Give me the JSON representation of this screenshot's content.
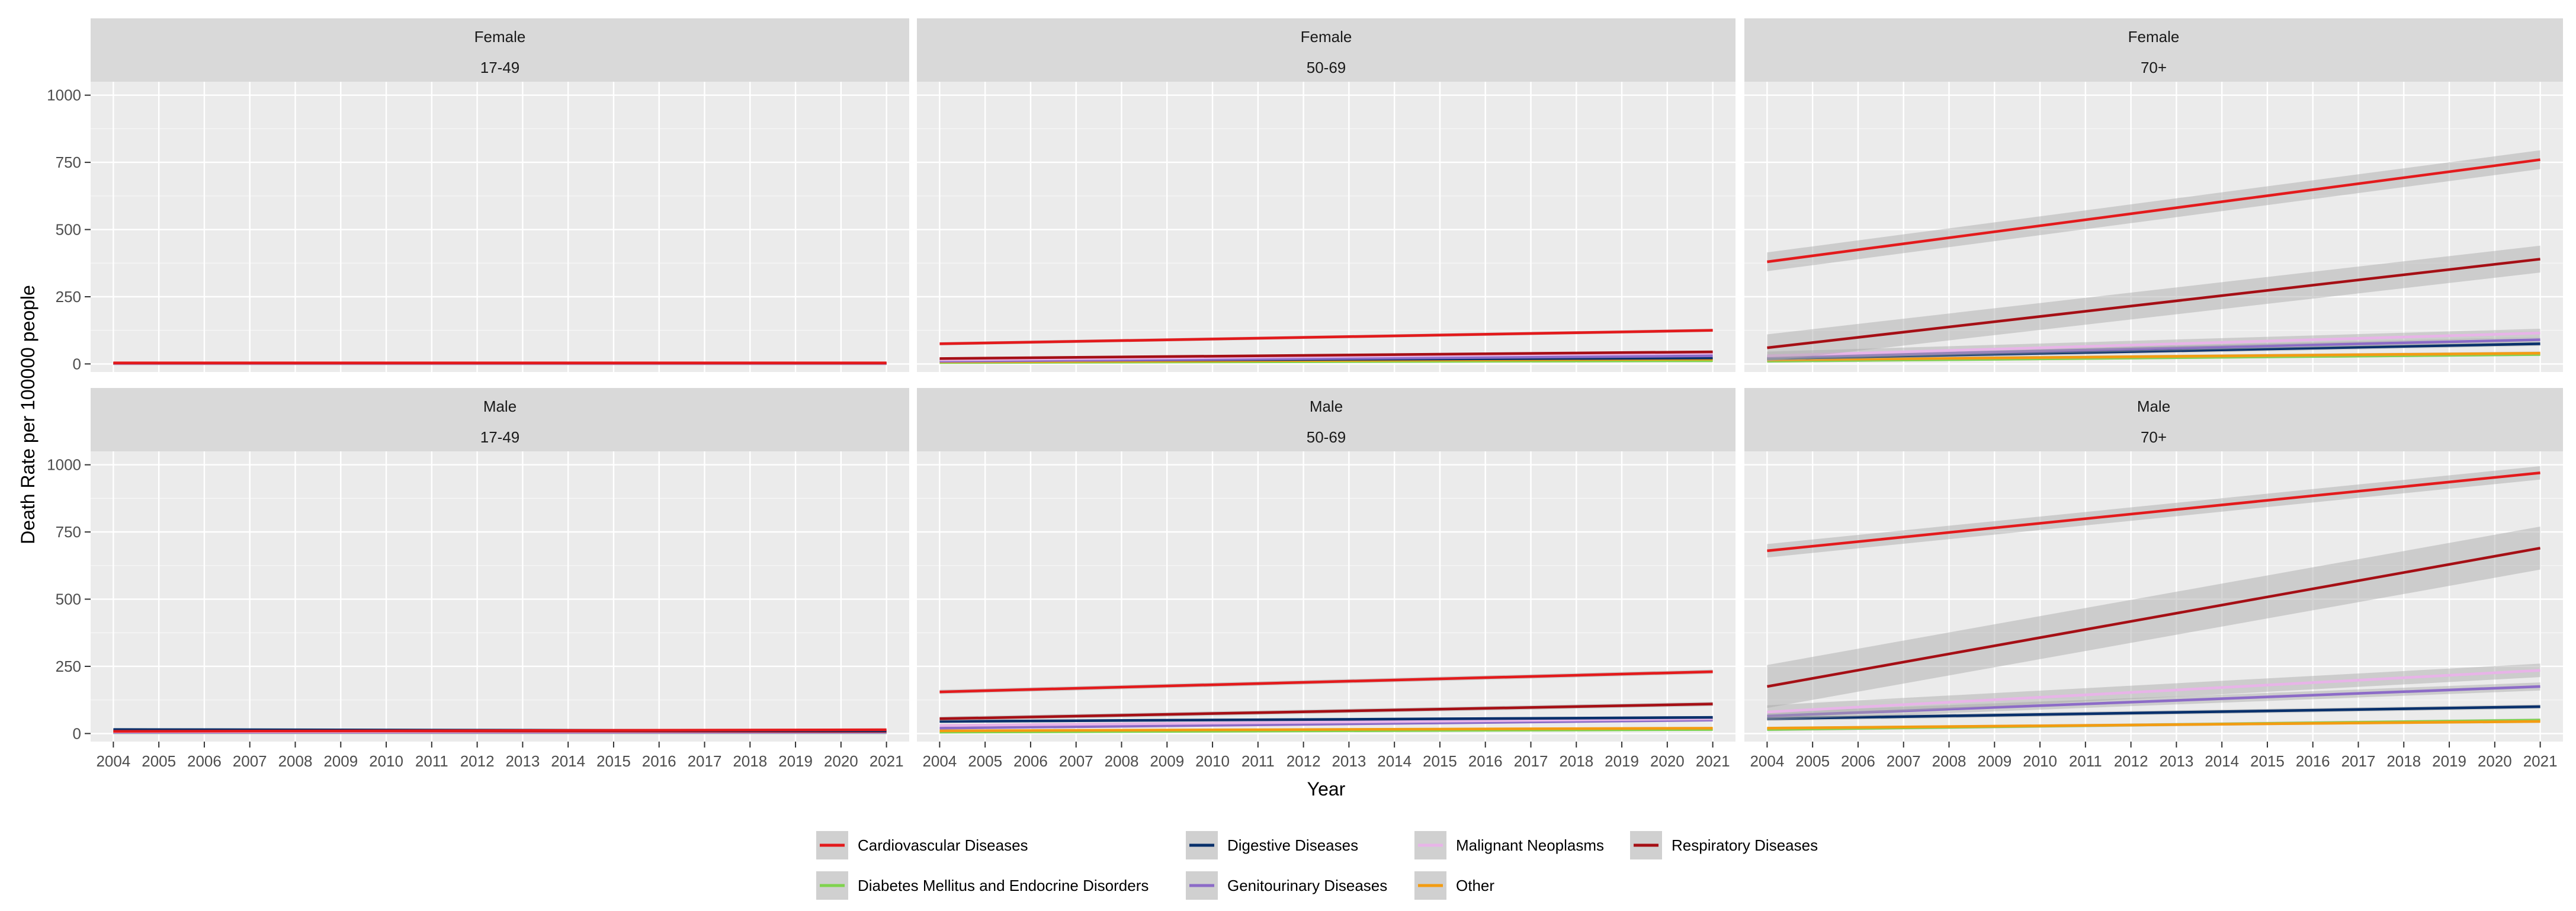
{
  "chart_data": {
    "type": "line",
    "facet_by": [
      "sex",
      "age_group"
    ],
    "xlabel": "Year",
    "ylabel": "Death Rate per 100000 people",
    "x_ticks": [
      "2004",
      "2005",
      "2006",
      "2007",
      "2008",
      "2009",
      "2010",
      "2011",
      "2012",
      "2013",
      "2014",
      "2015",
      "2016",
      "2017",
      "2018",
      "2019",
      "2020",
      "2021"
    ],
    "xlim": [
      2003.5,
      2021.5
    ],
    "y_ticks": [
      0,
      250,
      500,
      750,
      1000
    ],
    "ylim": [
      -30,
      1050
    ],
    "grid": true,
    "legend_position": "bottom",
    "colors": {
      "panel_bg": "#EBEBEB",
      "strip_bg": "#D9D9D9",
      "grid": "#FFFFFF",
      "ribbon": "#A6A6A6"
    },
    "series_defs": [
      {
        "key": "cardio",
        "name": "Cardiovascular Diseases",
        "color": "#E31A1C"
      },
      {
        "key": "diab",
        "name": "Diabetes Mellitus and Endocrine Disorders",
        "color": "#7FD34E"
      },
      {
        "key": "dig",
        "name": "Digestive Diseases",
        "color": "#08306B"
      },
      {
        "key": "geni",
        "name": "Genitourinary Diseases",
        "color": "#8C6BC7"
      },
      {
        "key": "malig",
        "name": "Malignant Neoplasms",
        "color": "#E8B4E8"
      },
      {
        "key": "other",
        "name": "Other",
        "color": "#F39C12"
      },
      {
        "key": "resp",
        "name": "Respiratory Diseases",
        "color": "#A50F15"
      }
    ],
    "panels": [
      {
        "sex": "Female",
        "age": "17-49",
        "series": [
          {
            "key": "other",
            "start": 2,
            "end": 2,
            "band": 0
          },
          {
            "key": "diab",
            "start": 1,
            "end": 1,
            "band": 0
          },
          {
            "key": "geni",
            "start": 1,
            "end": 1,
            "band": 0
          },
          {
            "key": "dig",
            "start": 3,
            "end": 3,
            "band": 0
          },
          {
            "key": "malig",
            "start": 2,
            "end": 2,
            "band": 0
          },
          {
            "key": "resp",
            "start": 3,
            "end": 3,
            "band": 0
          },
          {
            "key": "cardio",
            "start": 4,
            "end": 4,
            "band": 0
          }
        ]
      },
      {
        "sex": "Female",
        "age": "50-69",
        "series": [
          {
            "key": "diab",
            "start": 5,
            "end": 12,
            "band": 2
          },
          {
            "key": "other",
            "start": 8,
            "end": 18,
            "band": 2
          },
          {
            "key": "dig",
            "start": 12,
            "end": 22,
            "band": 3
          },
          {
            "key": "geni",
            "start": 10,
            "end": 30,
            "band": 3
          },
          {
            "key": "malig",
            "start": 15,
            "end": 40,
            "band": 4
          },
          {
            "key": "resp",
            "start": 20,
            "end": 45,
            "band": 4
          },
          {
            "key": "cardio",
            "start": 75,
            "end": 125,
            "band": 6
          }
        ]
      },
      {
        "sex": "Female",
        "age": "70+",
        "series": [
          {
            "key": "diab",
            "start": 10,
            "end": 35,
            "band": 5
          },
          {
            "key": "other",
            "start": 15,
            "end": 40,
            "band": 6
          },
          {
            "key": "dig",
            "start": 20,
            "end": 75,
            "band": 8
          },
          {
            "key": "geni",
            "start": 25,
            "end": 90,
            "band": 10
          },
          {
            "key": "malig",
            "start": 30,
            "end": 115,
            "band": 16
          },
          {
            "key": "resp",
            "start": 60,
            "end": 390,
            "band": 50
          },
          {
            "key": "cardio",
            "start": 380,
            "end": 760,
            "band": 35
          }
        ]
      },
      {
        "sex": "Male",
        "age": "17-49",
        "series": [
          {
            "key": "diab",
            "start": 3,
            "end": 3,
            "band": 0
          },
          {
            "key": "other",
            "start": 5,
            "end": 5,
            "band": 0
          },
          {
            "key": "geni",
            "start": 4,
            "end": 4,
            "band": 0
          },
          {
            "key": "malig",
            "start": 6,
            "end": 6,
            "band": 0
          },
          {
            "key": "resp",
            "start": 10,
            "end": 8,
            "band": 1
          },
          {
            "key": "dig",
            "start": 15,
            "end": 10,
            "band": 1
          },
          {
            "key": "cardio",
            "start": 8,
            "end": 14,
            "band": 2
          }
        ]
      },
      {
        "sex": "Male",
        "age": "50-69",
        "series": [
          {
            "key": "diab",
            "start": 5,
            "end": 15,
            "band": 3
          },
          {
            "key": "other",
            "start": 10,
            "end": 20,
            "band": 3
          },
          {
            "key": "geni",
            "start": 20,
            "end": 50,
            "band": 4
          },
          {
            "key": "malig",
            "start": 30,
            "end": 55,
            "band": 5
          },
          {
            "key": "dig",
            "start": 45,
            "end": 60,
            "band": 5
          },
          {
            "key": "resp",
            "start": 55,
            "end": 110,
            "band": 8
          },
          {
            "key": "cardio",
            "start": 155,
            "end": 230,
            "band": 8
          }
        ]
      },
      {
        "sex": "Male",
        "age": "70+",
        "series": [
          {
            "key": "diab",
            "start": 15,
            "end": 50,
            "band": 6
          },
          {
            "key": "other",
            "start": 20,
            "end": 45,
            "band": 5
          },
          {
            "key": "dig",
            "start": 55,
            "end": 100,
            "band": 8
          },
          {
            "key": "geni",
            "start": 65,
            "end": 175,
            "band": 15
          },
          {
            "key": "malig",
            "start": 80,
            "end": 235,
            "band": 25
          },
          {
            "key": "resp",
            "start": 175,
            "end": 690,
            "band": 80
          },
          {
            "key": "cardio",
            "start": 680,
            "end": 970,
            "band": 25
          }
        ]
      }
    ],
    "legend": {
      "rows": [
        [
          "cardio",
          "dig",
          "malig",
          "resp"
        ],
        [
          "diab",
          "geni",
          "other"
        ]
      ]
    }
  }
}
